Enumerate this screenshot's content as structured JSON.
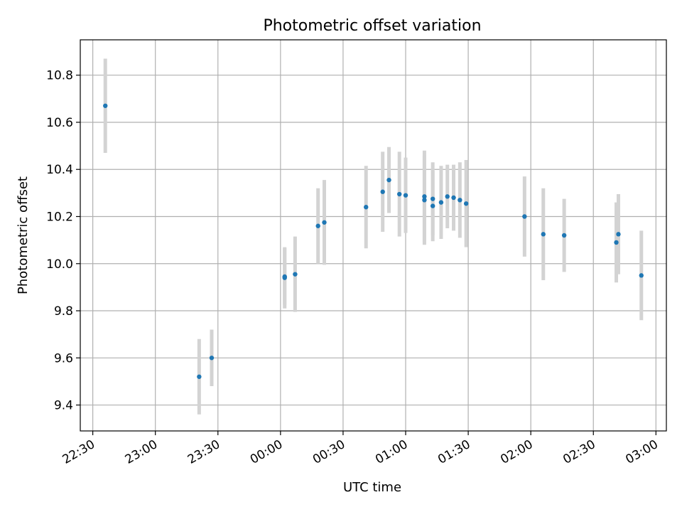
{
  "chart_data": {
    "type": "scatter",
    "title": "Photometric offset variation",
    "xlabel": "UTC time",
    "ylabel": "Photometric offset",
    "x_is_time": true,
    "xlim": [
      "22:24",
      "03:05"
    ],
    "ylim": [
      9.29,
      10.95
    ],
    "x_ticks": [
      "22:30",
      "23:00",
      "23:30",
      "00:00",
      "00:30",
      "01:00",
      "01:30",
      "02:00",
      "02:30",
      "03:00"
    ],
    "y_ticks": [
      9.4,
      9.6,
      9.8,
      10.0,
      10.2,
      10.4,
      10.6,
      10.8
    ],
    "y_tick_labels": [
      "9.4",
      "9.6",
      "9.8",
      "10.0",
      "10.2",
      "10.4",
      "10.6",
      "10.8"
    ],
    "grid": true,
    "colors": {
      "point": "#1f77b4",
      "errorbar": "#d3d3d3",
      "grid": "#b0b0b0"
    },
    "points": [
      {
        "x": "22:36",
        "y": 10.67,
        "err": 0.2
      },
      {
        "x": "23:21",
        "y": 9.52,
        "err": 0.16
      },
      {
        "x": "23:27",
        "y": 9.6,
        "err": 0.12
      },
      {
        "x": "00:02",
        "y": 9.94,
        "err": 0.13
      },
      {
        "x": "00:02",
        "y": 9.945,
        "err": 0.12
      },
      {
        "x": "00:07",
        "y": 9.955,
        "err": 0.16
      },
      {
        "x": "00:18",
        "y": 10.16,
        "err": 0.16
      },
      {
        "x": "00:21",
        "y": 10.175,
        "err": 0.18
      },
      {
        "x": "00:41",
        "y": 10.24,
        "err": 0.175
      },
      {
        "x": "00:49",
        "y": 10.305,
        "err": 0.17
      },
      {
        "x": "00:52",
        "y": 10.355,
        "err": 0.14
      },
      {
        "x": "00:57",
        "y": 10.295,
        "err": 0.18
      },
      {
        "x": "01:00",
        "y": 10.29,
        "err": 0.16
      },
      {
        "x": "01:09",
        "y": 10.285,
        "err": 0.195
      },
      {
        "x": "01:09",
        "y": 10.27,
        "err": 0.19
      },
      {
        "x": "01:13",
        "y": 10.245,
        "err": 0.15
      },
      {
        "x": "01:13",
        "y": 10.275,
        "err": 0.155
      },
      {
        "x": "01:17",
        "y": 10.26,
        "err": 0.155
      },
      {
        "x": "01:20",
        "y": 10.285,
        "err": 0.135
      },
      {
        "x": "01:23",
        "y": 10.28,
        "err": 0.14
      },
      {
        "x": "01:26",
        "y": 10.27,
        "err": 0.16
      },
      {
        "x": "01:29",
        "y": 10.255,
        "err": 0.185
      },
      {
        "x": "01:57",
        "y": 10.2,
        "err": 0.17
      },
      {
        "x": "02:06",
        "y": 10.125,
        "err": 0.195
      },
      {
        "x": "02:16",
        "y": 10.12,
        "err": 0.155
      },
      {
        "x": "02:41",
        "y": 10.09,
        "err": 0.17
      },
      {
        "x": "02:42",
        "y": 10.125,
        "err": 0.17
      },
      {
        "x": "02:53",
        "y": 9.95,
        "err": 0.19
      }
    ]
  }
}
